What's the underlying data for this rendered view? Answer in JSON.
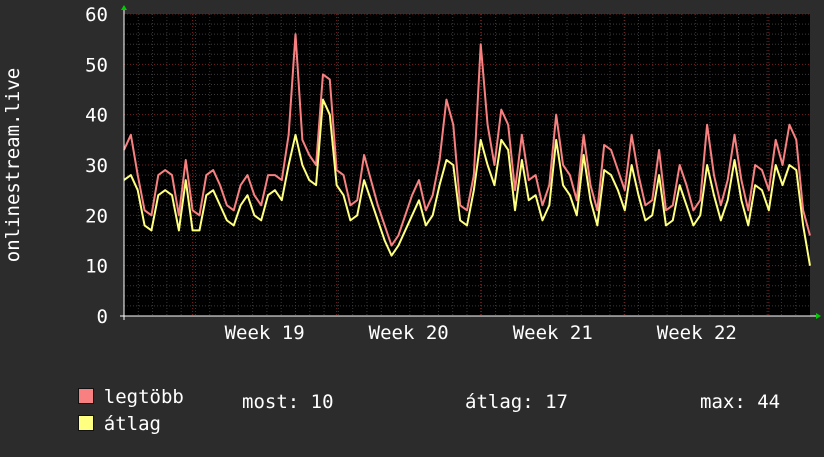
{
  "chart_data": {
    "type": "line",
    "title": "",
    "xlabel": "",
    "ylabel": "onlinestream.live",
    "ylim": [
      0,
      60
    ],
    "yticks": [
      0,
      10,
      20,
      30,
      40,
      50,
      60
    ],
    "xticks": [
      "Week 19",
      "Week 20",
      "Week 21",
      "Week 22"
    ],
    "grid": true,
    "legend_position": "bottom-left",
    "x_unit": "day",
    "x_start_label": "",
    "series": [
      {
        "name": "legtöbb",
        "color": "#f88080",
        "values": [
          33,
          36,
          28,
          21,
          20,
          28,
          29,
          28,
          20,
          31,
          21,
          20,
          28,
          29,
          26,
          22,
          21,
          26,
          28,
          24,
          22,
          28,
          28,
          27,
          36,
          56,
          35,
          32,
          30,
          48,
          47,
          29,
          28,
          22,
          23,
          32,
          27,
          22,
          18,
          14,
          16,
          20,
          24,
          27,
          21,
          24,
          31,
          43,
          38,
          22,
          21,
          28,
          54,
          38,
          30,
          41,
          38,
          25,
          36,
          27,
          28,
          22,
          26,
          40,
          30,
          28,
          23,
          36,
          26,
          21,
          34,
          33,
          29,
          25,
          36,
          28,
          22,
          23,
          33,
          21,
          22,
          30,
          26,
          21,
          23,
          38,
          28,
          22,
          27,
          36,
          27,
          21,
          30,
          29,
          25,
          35,
          30,
          38,
          35,
          21,
          16
        ]
      },
      {
        "name": "átlag",
        "color": "#ffff80",
        "values": [
          27,
          28,
          25,
          18,
          17,
          24,
          25,
          24,
          17,
          27,
          17,
          17,
          24,
          25,
          22,
          19,
          18,
          22,
          24,
          20,
          19,
          24,
          25,
          23,
          30,
          36,
          30,
          27,
          26,
          43,
          40,
          26,
          24,
          19,
          20,
          27,
          23,
          19,
          15,
          12,
          14,
          17,
          20,
          23,
          18,
          20,
          26,
          31,
          30,
          19,
          18,
          25,
          35,
          30,
          26,
          35,
          33,
          21,
          31,
          23,
          24,
          19,
          22,
          35,
          26,
          24,
          20,
          32,
          23,
          18,
          29,
          28,
          25,
          21,
          30,
          24,
          19,
          20,
          28,
          18,
          19,
          26,
          22,
          18,
          20,
          30,
          24,
          19,
          23,
          31,
          23,
          18,
          26,
          25,
          21,
          30,
          26,
          30,
          29,
          18,
          10
        ]
      }
    ]
  },
  "legend": {
    "items": [
      {
        "label": "legtöbb",
        "color": "#f88080"
      },
      {
        "label": "átlag",
        "color": "#ffff80"
      }
    ],
    "stats": [
      {
        "label": "most:",
        "value": "10"
      },
      {
        "label": "átlag:",
        "value": "17"
      },
      {
        "label": "max:",
        "value": "44"
      }
    ]
  }
}
